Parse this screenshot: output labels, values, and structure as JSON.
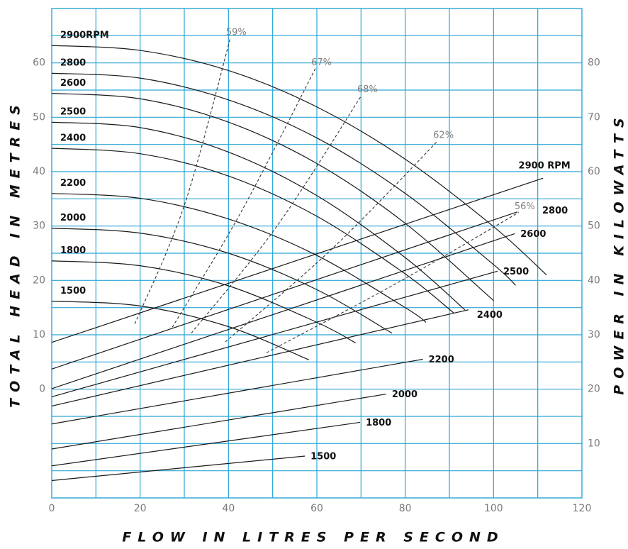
{
  "chart_data": {
    "type": "line",
    "x_label": "FLOW IN LITRES PER SECOND",
    "y_label": "TOTAL HEAD IN METRES",
    "y2_label": "POWER IN KILOWATTS",
    "xlim": [
      0,
      120
    ],
    "xticks": [
      0,
      20,
      40,
      60,
      80,
      100,
      120
    ],
    "xgrid": [
      10,
      20,
      30,
      40,
      50,
      60,
      70,
      80,
      90,
      100,
      110
    ],
    "ylim": [
      -20,
      70
    ],
    "yticks": [
      0,
      10,
      20,
      30,
      40,
      50,
      60
    ],
    "ygrid": [
      -15,
      -10,
      -5,
      0,
      5,
      10,
      15,
      20,
      25,
      30,
      35,
      40,
      45,
      50,
      55,
      60,
      65
    ],
    "y2lim": [
      0,
      90
    ],
    "y2ticks": [
      10,
      20,
      30,
      40,
      50,
      60,
      70,
      80
    ],
    "grid": true,
    "grid_color": "#2ba6d6",
    "series": [
      {
        "name": "2900RPM",
        "color": "#1a1a1a",
        "x": [
          0,
          20,
          40,
          60,
          80,
          100,
          112
        ],
        "values": [
          63.2,
          62.3,
          58.6,
          51.9,
          42.3,
          29.9,
          21.0
        ]
      },
      {
        "name": "2800",
        "color": "#1a1a1a",
        "x": [
          0,
          20,
          40,
          60,
          80,
          100,
          105
        ],
        "values": [
          58.1,
          57.2,
          53.2,
          46.2,
          36.0,
          22.9,
          19.1
        ]
      },
      {
        "name": "2600",
        "color": "#1a1a1a",
        "x": [
          0,
          20,
          40,
          60,
          80,
          100
        ],
        "values": [
          54.4,
          53.4,
          49.1,
          41.5,
          30.5,
          16.3
        ]
      },
      {
        "name": "2500",
        "color": "#1a1a1a",
        "x": [
          0,
          20,
          40,
          60,
          80,
          93.5
        ],
        "values": [
          49.1,
          48.1,
          43.6,
          35.6,
          24.2,
          14.6
        ]
      },
      {
        "name": "2400",
        "color": "#1a1a1a",
        "x": [
          0,
          20,
          40,
          60,
          80,
          91
        ],
        "values": [
          44.3,
          43.3,
          39.2,
          31.8,
          21.2,
          14.0
        ]
      },
      {
        "name": "2200",
        "color": "#1a1a1a",
        "x": [
          0,
          20,
          40,
          60,
          80,
          84.7
        ],
        "values": [
          36.0,
          35.1,
          31.3,
          24.6,
          15.0,
          12.3
        ]
      },
      {
        "name": "2000",
        "color": "#1a1a1a",
        "x": [
          0,
          20,
          40,
          60,
          77
        ],
        "values": [
          29.6,
          28.7,
          25.0,
          18.3,
          10.3
        ]
      },
      {
        "name": "1800",
        "color": "#1a1a1a",
        "x": [
          0,
          20,
          40,
          60,
          68.8
        ],
        "values": [
          23.6,
          22.7,
          19.0,
          12.3,
          8.5
        ]
      },
      {
        "name": "1500",
        "color": "#1a1a1a",
        "x": [
          0,
          20,
          40,
          58.2
        ],
        "values": [
          16.2,
          15.3,
          11.5,
          5.4
        ]
      },
      {
        "name": "2900 RPM",
        "color": "#1a1a1a",
        "axis": "y2",
        "x": [
          0,
          111.2
        ],
        "values": [
          28.6,
          58.8
        ]
      },
      {
        "name": "2800",
        "color": "#1a1a1a",
        "axis": "y2",
        "x": [
          0,
          105.4
        ],
        "values": [
          23.7,
          52.6
        ]
      },
      {
        "name": "2600",
        "color": "#1a1a1a",
        "axis": "y2",
        "x": [
          0,
          104.8
        ],
        "values": [
          20.1,
          48.6
        ]
      },
      {
        "name": "2500",
        "color": "#1a1a1a",
        "axis": "y2",
        "x": [
          0,
          100.9
        ],
        "values": [
          18.6,
          41.7
        ]
      },
      {
        "name": "2400",
        "color": "#1a1a1a",
        "axis": "y2",
        "x": [
          0,
          94.3
        ],
        "values": [
          16.9,
          34.6
        ]
      },
      {
        "name": "2200",
        "color": "#1a1a1a",
        "axis": "y2",
        "x": [
          0,
          84
        ],
        "values": [
          13.6,
          25.5
        ]
      },
      {
        "name": "2000",
        "color": "#1a1a1a",
        "axis": "y2",
        "x": [
          0,
          75.7
        ],
        "values": [
          9.0,
          19.1
        ]
      },
      {
        "name": "1800",
        "color": "#1a1a1a",
        "axis": "y2",
        "x": [
          0,
          69.8
        ],
        "values": [
          5.9,
          13.9
        ]
      },
      {
        "name": "1500",
        "color": "#1a1a1a",
        "axis": "y2",
        "x": [
          0,
          57.3
        ],
        "values": [
          3.2,
          7.7
        ]
      },
      {
        "name": "59%",
        "color": "#333333",
        "dashed": true,
        "x": [
          18.8,
          30,
          40.4
        ],
        "values": [
          12.0,
          33.8,
          64.5
        ]
      },
      {
        "name": "67%",
        "color": "#333333",
        "dashed": true,
        "x": [
          27.3,
          42.8,
          59.7
        ],
        "values": [
          11.4,
          32.5,
          59.0
        ]
      },
      {
        "name": "68%",
        "color": "#333333",
        "dashed": true,
        "x": [
          31.6,
          50.9,
          70.1
        ],
        "values": [
          10.3,
          29.9,
          54.0
        ]
      },
      {
        "name": "62%",
        "color": "#333333",
        "dashed": true,
        "x": [
          39.3,
          63.7,
          87.3
        ],
        "values": [
          8.7,
          26.0,
          45.6
        ]
      },
      {
        "name": "56%",
        "color": "#333333",
        "dashed": true,
        "x": [
          48.6,
          78.1,
          105.7
        ],
        "values": [
          6.7,
          19.5,
          32.5
        ]
      }
    ]
  }
}
